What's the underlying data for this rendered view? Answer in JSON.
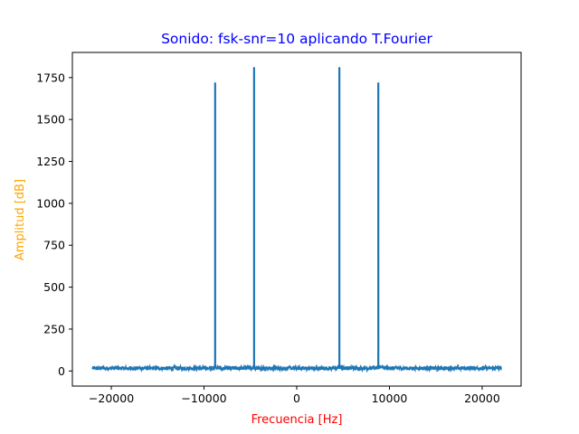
{
  "chart_data": {
    "type": "line",
    "title": "Sonido: fsk-snr=10 aplicando T.Fourier",
    "xlabel": "Frecuencia [Hz]",
    "ylabel": "Amplitud [dB]",
    "xlim": [
      -24200,
      24200
    ],
    "ylim": [
      -90,
      1900
    ],
    "x_ticks": [
      -20000,
      -10000,
      0,
      10000,
      20000
    ],
    "x_tick_labels": [
      "−20000",
      "−10000",
      "0",
      "10000",
      "20000"
    ],
    "y_ticks": [
      0,
      250,
      500,
      750,
      1000,
      1250,
      1500,
      1750
    ],
    "y_tick_labels": [
      "0",
      "250",
      "500",
      "750",
      "1000",
      "1250",
      "1500",
      "1750"
    ],
    "grid": false,
    "colors": {
      "series": "#1f77b4",
      "title": "#0000ff",
      "xlabel": "#ff0000",
      "ylabel": "#ffa500"
    },
    "series": [
      {
        "x_range": [
          -22050,
          22050
        ],
        "noise_floor": 15,
        "noise_band": [
          5,
          28
        ],
        "peaks": [
          {
            "x": -8800,
            "y": 1720
          },
          {
            "x": -4600,
            "y": 1812
          },
          {
            "x": 4600,
            "y": 1812
          },
          {
            "x": 8800,
            "y": 1720
          }
        ]
      }
    ]
  }
}
